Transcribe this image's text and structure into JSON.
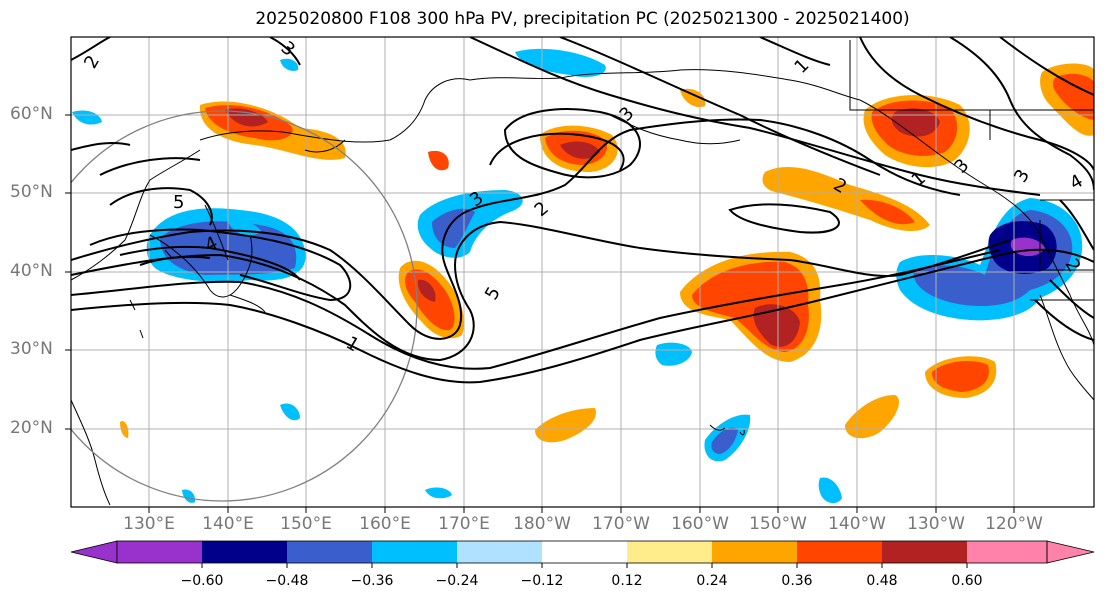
{
  "title": "2025020800 F108 300 hPa PV, precipitation PC (2025021300 - 2025021400)",
  "lat_labels": [
    "60°N",
    "50°N",
    "40°N",
    "30°N",
    "20°N"
  ],
  "lon_labels": [
    "130°E",
    "140°E",
    "150°E",
    "160°E",
    "170°E",
    "180°W",
    "170°W",
    "160°W",
    "150°W",
    "140°W",
    "130°W",
    "120°W"
  ],
  "contour_labels": [
    "1",
    "2",
    "3",
    "4",
    "5"
  ],
  "colorbar": {
    "tick_labels": [
      "−0.60",
      "−0.48",
      "−0.36",
      "−0.24",
      "−0.12",
      "0.12",
      "0.24",
      "0.36",
      "0.48",
      "0.60"
    ],
    "colors": [
      "#9932cc",
      "#00008b",
      "#3a5fcd",
      "#00bfff",
      "#b0e2ff",
      "#ffffff",
      "#ffec8b",
      "#ffa500",
      "#ff4500",
      "#b22222",
      "#ff82ab"
    ]
  }
}
